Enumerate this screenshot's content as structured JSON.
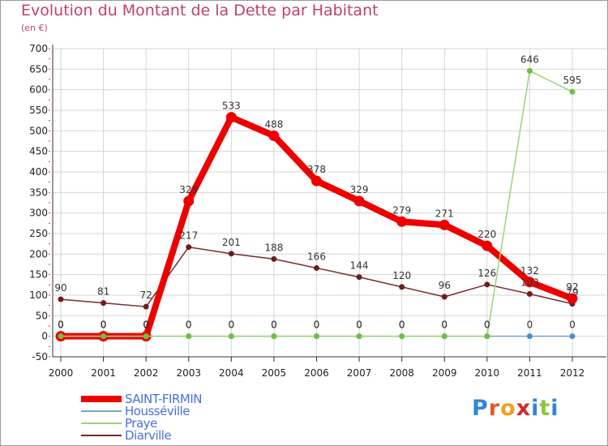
{
  "header": {
    "title": "Evolution du Montant de la Dette par Habitant",
    "subtitle": "(en €)"
  },
  "logo": {
    "text": "Proxiti",
    "letter_colors": [
      "#2f86d6",
      "#e05a2a",
      "#f0a020",
      "#cc2a2a",
      "#2f86d6",
      "#8cc63f",
      "#2f86d6"
    ]
  },
  "chart_data": {
    "type": "line",
    "x": [
      "2000",
      "2001",
      "2002",
      "2003",
      "2004",
      "2005",
      "2006",
      "2007",
      "2008",
      "2009",
      "2010",
      "2011",
      "2012"
    ],
    "ylim": [
      -50,
      700
    ],
    "yticks": [
      -50,
      0,
      50,
      100,
      150,
      200,
      250,
      300,
      350,
      400,
      450,
      500,
      550,
      600,
      650,
      700
    ],
    "grid": true,
    "legend_position": "bottom-left",
    "series": [
      {
        "name": "SAINT-FIRMIN",
        "color": "#ee0000",
        "values": [
          0,
          0,
          0,
          329,
          533,
          488,
          378,
          329,
          279,
          271,
          220,
          132,
          92
        ],
        "labels": [
          "0",
          "0",
          "0",
          "329",
          "533",
          "488",
          "378",
          "329",
          "279",
          "271",
          "220",
          "132",
          "92"
        ]
      },
      {
        "name": "Housséville",
        "color": "#7aa6d0",
        "values": [
          0,
          0,
          0,
          0,
          0,
          0,
          0,
          0,
          0,
          0,
          0,
          0,
          0
        ],
        "labels": [
          "0",
          "0",
          "0",
          "0",
          "0",
          "0",
          "0",
          "0",
          "0",
          "0",
          "0",
          "0",
          "0"
        ]
      },
      {
        "name": "Praye",
        "color": "#9ad47a",
        "values": [
          0,
          0,
          0,
          0,
          0,
          0,
          0,
          0,
          0,
          0,
          0,
          646,
          595
        ],
        "labels": [
          "0",
          "0",
          "0",
          "0",
          "0",
          "0",
          "0",
          "0",
          "0",
          "0",
          "0",
          "646",
          "595"
        ]
      },
      {
        "name": "Diarville",
        "color": "#7a2a2a",
        "values": [
          90,
          81,
          72,
          217,
          201,
          188,
          166,
          144,
          120,
          96,
          126,
          103,
          79
        ],
        "labels": [
          "90",
          "81",
          "72",
          "217",
          "201",
          "188",
          "166",
          "144",
          "120",
          "96",
          "126",
          "103",
          "79"
        ]
      }
    ]
  }
}
